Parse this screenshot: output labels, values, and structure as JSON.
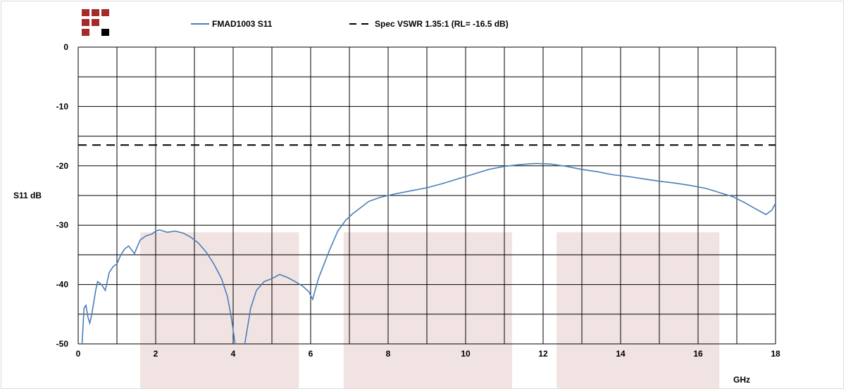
{
  "chart_data": {
    "type": "line",
    "title": "",
    "xlabel": "GHz",
    "ylabel": "S11 dB",
    "xlim": [
      0,
      18
    ],
    "ylim": [
      -50,
      0
    ],
    "x_ticks": [
      0,
      2,
      4,
      6,
      8,
      10,
      12,
      14,
      16,
      18
    ],
    "y_ticks": [
      0,
      -10,
      -20,
      -30,
      -40,
      -50
    ],
    "x_tick_labels": [
      "0",
      "2",
      "4",
      "6",
      "8",
      "10",
      "12",
      "14",
      "16",
      "18"
    ],
    "y_tick_labels": [
      "0",
      "-10",
      "-20",
      "-30",
      "-40",
      "-50"
    ],
    "grid": true,
    "legend_position": "top",
    "shaded_bands": [
      {
        "x0": 1.6,
        "x1": 5.7,
        "y_top": -31.2
      },
      {
        "x0": 6.85,
        "x1": 11.2,
        "y_top": -31.2
      },
      {
        "x0": 12.35,
        "x1": 16.55,
        "y_top": -31.2
      }
    ],
    "series": [
      {
        "name": "FMAD1003 S11",
        "style": "solid",
        "color": "#4a7ebb",
        "points": [
          [
            0.1,
            -50
          ],
          [
            0.15,
            -44
          ],
          [
            0.2,
            -43.5
          ],
          [
            0.25,
            -45.5
          ],
          [
            0.3,
            -46.5
          ],
          [
            0.35,
            -45
          ],
          [
            0.45,
            -41
          ],
          [
            0.5,
            -39.5
          ],
          [
            0.6,
            -40
          ],
          [
            0.7,
            -41
          ],
          [
            0.8,
            -38
          ],
          [
            0.9,
            -37
          ],
          [
            1.0,
            -36.5
          ],
          [
            1.1,
            -35
          ],
          [
            1.2,
            -34
          ],
          [
            1.3,
            -33.5
          ],
          [
            1.45,
            -34.8
          ],
          [
            1.6,
            -32.5
          ],
          [
            1.75,
            -31.8
          ],
          [
            1.9,
            -31.5
          ],
          [
            2.0,
            -31
          ],
          [
            2.1,
            -30.8
          ],
          [
            2.3,
            -31.2
          ],
          [
            2.5,
            -31
          ],
          [
            2.7,
            -31.3
          ],
          [
            2.9,
            -32
          ],
          [
            3.1,
            -33
          ],
          [
            3.3,
            -34.5
          ],
          [
            3.5,
            -36.5
          ],
          [
            3.7,
            -39
          ],
          [
            3.85,
            -42
          ],
          [
            3.95,
            -45.5
          ],
          [
            4.05,
            -50
          ],
          [
            4.3,
            -50
          ],
          [
            4.45,
            -44
          ],
          [
            4.6,
            -41
          ],
          [
            4.8,
            -39.5
          ],
          [
            5.0,
            -39
          ],
          [
            5.2,
            -38.3
          ],
          [
            5.4,
            -38.8
          ],
          [
            5.6,
            -39.5
          ],
          [
            5.8,
            -40.3
          ],
          [
            5.95,
            -41.2
          ],
          [
            6.05,
            -42.5
          ],
          [
            6.2,
            -39
          ],
          [
            6.35,
            -36.5
          ],
          [
            6.5,
            -34
          ],
          [
            6.7,
            -31
          ],
          [
            6.9,
            -29.2
          ],
          [
            7.1,
            -28
          ],
          [
            7.3,
            -27
          ],
          [
            7.5,
            -26
          ],
          [
            7.8,
            -25.3
          ],
          [
            8.2,
            -24.7
          ],
          [
            8.6,
            -24.2
          ],
          [
            9.0,
            -23.7
          ],
          [
            9.4,
            -23
          ],
          [
            9.8,
            -22.2
          ],
          [
            10.2,
            -21.4
          ],
          [
            10.6,
            -20.6
          ],
          [
            11.0,
            -20.1
          ],
          [
            11.4,
            -19.8
          ],
          [
            11.8,
            -19.6
          ],
          [
            12.2,
            -19.7
          ],
          [
            12.6,
            -20.1
          ],
          [
            13.0,
            -20.6
          ],
          [
            13.4,
            -21
          ],
          [
            13.8,
            -21.5
          ],
          [
            14.2,
            -21.8
          ],
          [
            14.6,
            -22.2
          ],
          [
            15.0,
            -22.6
          ],
          [
            15.4,
            -22.9
          ],
          [
            15.8,
            -23.3
          ],
          [
            16.2,
            -23.8
          ],
          [
            16.6,
            -24.6
          ],
          [
            16.9,
            -25.2
          ],
          [
            17.2,
            -26.2
          ],
          [
            17.5,
            -27.3
          ],
          [
            17.75,
            -28.2
          ],
          [
            17.9,
            -27.5
          ],
          [
            18.0,
            -26.3
          ]
        ]
      },
      {
        "name": "Spec VSWR 1.35:1 (RL= -16.5 dB)",
        "style": "dashed",
        "color": "#000000",
        "points": [
          [
            0,
            -16.5
          ],
          [
            18,
            -16.5
          ]
        ]
      }
    ]
  },
  "colors": {
    "line": "#4a7ebb",
    "band": "#f2e3e3",
    "grid": "#000000",
    "logo_red": "#a52a2a",
    "logo_black": "#000000"
  },
  "logo": {
    "cells": [
      {
        "row": 0,
        "col": 0,
        "color": "red"
      },
      {
        "row": 0,
        "col": 1,
        "color": "red"
      },
      {
        "row": 0,
        "col": 2,
        "color": "red"
      },
      {
        "row": 1,
        "col": 0,
        "color": "red"
      },
      {
        "row": 1,
        "col": 1,
        "color": "red"
      },
      {
        "row": 2,
        "col": 0,
        "color": "red"
      },
      {
        "row": 2,
        "col": 2,
        "color": "black"
      }
    ]
  }
}
